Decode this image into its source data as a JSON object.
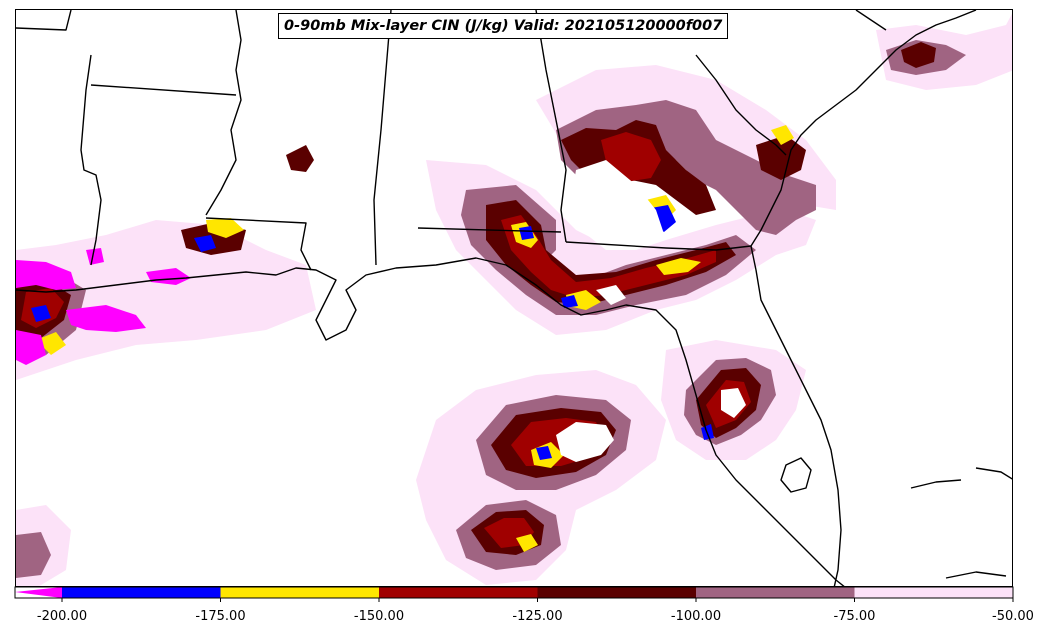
{
  "title": "0-90mb Mix-layer CIN (J/kg) Valid: 202105120000f007",
  "colors": {
    "extend_low": "#ff00ff",
    "bin_200_175": "#0000ff",
    "bin_175_150": "#ffe600",
    "bin_150_125": "#a00000",
    "bin_125_100": "#5a0000",
    "bin_100_75": "#a06482",
    "bin_75_50": "#fce2f8",
    "outline": "#000000"
  },
  "colorbar": {
    "ticks": [
      "-200.00",
      "-175.00",
      "-150.00",
      "-125.00",
      "-100.00",
      "-75.00",
      "-50.00"
    ],
    "bins": [
      {
        "from": -200,
        "to": -175,
        "color": "#0000ff"
      },
      {
        "from": -175,
        "to": -150,
        "color": "#ffe600"
      },
      {
        "from": -150,
        "to": -125,
        "color": "#a00000"
      },
      {
        "from": -125,
        "to": -100,
        "color": "#5a0000"
      },
      {
        "from": -100,
        "to": -75,
        "color": "#a06482"
      },
      {
        "from": -75,
        "to": -50,
        "color": "#fce2f8"
      }
    ],
    "extend": "min"
  }
}
